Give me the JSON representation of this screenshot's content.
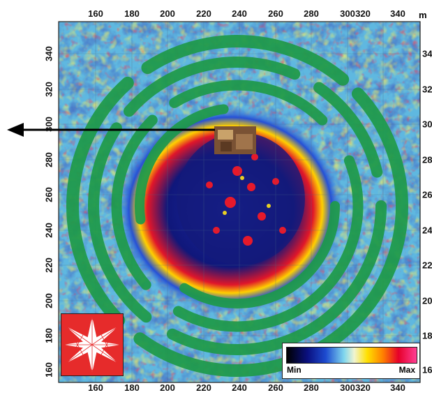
{
  "map": {
    "unit": "m",
    "x_ticks": [
      "160",
      "180",
      "200",
      "220",
      "240",
      "260",
      "280",
      "300",
      "320",
      "340"
    ],
    "y_ticks": [
      "340",
      "320",
      "300",
      "280",
      "260",
      "240",
      "220",
      "200",
      "180",
      "160"
    ]
  },
  "legend": {
    "min_label": "Min",
    "max_label": "Max"
  },
  "colors": {
    "ring_green": "#1f9a4a",
    "background_blue": "#5fb8e0",
    "dark_blue": "#141a7a",
    "yellow": "#ffe41a",
    "red": "#e6192b",
    "compass_red": "#e62b2b",
    "arrow": "#000000"
  },
  "icons": {
    "compass": "compass-star-icon",
    "pointer": "left-arrow-icon"
  }
}
